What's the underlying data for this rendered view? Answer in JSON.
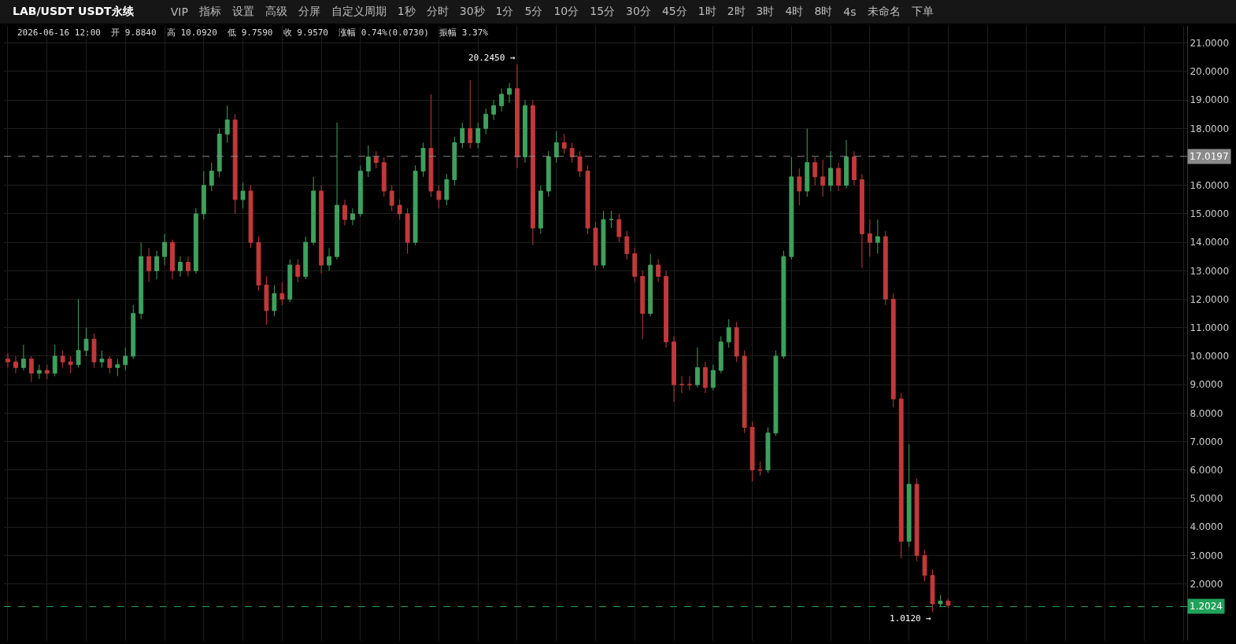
{
  "chart_data": {
    "type": "candlestick",
    "title": "LAB/USDT USDT永续",
    "subtitle": "2026-06-16 12:00  开 9.8840  高 10.0920  低 9.7590  收 9.9570  涨幅 0.74%(0.0730)  振幅 3.37%",
    "annotations": [
      "VIP",
      "指标",
      "设置",
      "高级",
      "分屏",
      "自定义周期",
      "1秒",
      "分时",
      "30秒",
      "1分",
      "5分",
      "10分",
      "15分",
      "30分",
      "45分",
      "1时",
      "2时",
      "3时",
      "4时",
      "8时",
      "4s",
      "未命名",
      "下单",
      "20.2450 →",
      "1.0120 →"
    ],
    "categories": [
      null,
      null,
      null,
      null,
      null,
      null,
      null,
      null,
      null,
      null,
      null,
      null,
      null,
      null,
      null,
      null,
      null,
      null,
      null,
      null,
      null,
      null,
      null,
      null,
      null,
      null,
      null,
      null,
      null,
      null,
      null,
      null,
      null,
      null,
      null,
      null,
      null,
      null,
      null,
      null,
      null,
      null,
      null,
      null,
      null,
      null,
      null,
      null,
      null,
      null,
      null,
      null,
      null,
      null,
      null,
      null,
      null,
      null,
      null,
      null,
      null,
      null,
      null,
      null,
      null,
      null,
      null,
      null,
      null,
      null,
      null,
      null,
      null,
      null,
      null,
      null,
      null,
      null,
      null,
      null,
      null,
      null,
      null,
      null,
      null,
      null,
      null,
      null,
      null,
      null,
      null,
      null,
      null,
      null,
      null,
      null,
      null,
      null,
      null,
      null,
      null,
      null,
      null,
      null,
      null,
      null,
      null,
      null,
      null,
      null,
      null,
      null,
      null,
      null,
      null,
      null,
      null,
      null,
      null,
      null,
      null,
      null,
      null,
      null,
      null,
      null,
      null,
      null,
      null,
      null,
      null,
      null,
      null,
      null,
      null,
      null,
      null,
      null,
      null,
      null,
      null,
      null,
      null,
      null,
      null,
      null,
      null,
      null,
      null,
      null,
      null
    ],
    "ohlc": [
      [
        9.9,
        10.1,
        9.6,
        9.8
      ],
      [
        9.8,
        10.0,
        9.4,
        9.6
      ],
      [
        9.6,
        10.4,
        9.5,
        9.9
      ],
      [
        9.9,
        10.0,
        9.1,
        9.4
      ],
      [
        9.4,
        9.7,
        9.2,
        9.5
      ],
      [
        9.5,
        9.7,
        9.2,
        9.4
      ],
      [
        9.4,
        10.4,
        9.3,
        10.0
      ],
      [
        10.0,
        10.2,
        9.6,
        9.8
      ],
      [
        9.8,
        10.0,
        9.4,
        9.7
      ],
      [
        9.7,
        12.0,
        9.6,
        10.2
      ],
      [
        10.2,
        11.0,
        10.0,
        10.6
      ],
      [
        10.6,
        10.8,
        9.6,
        9.8
      ],
      [
        9.8,
        10.2,
        9.6,
        9.9
      ],
      [
        9.9,
        10.0,
        9.4,
        9.6
      ],
      [
        9.6,
        9.9,
        9.3,
        9.7
      ],
      [
        9.7,
        10.3,
        9.5,
        10.0
      ],
      [
        10.0,
        11.8,
        9.9,
        11.5
      ],
      [
        11.5,
        14.0,
        11.3,
        13.5
      ],
      [
        13.5,
        13.8,
        12.6,
        13.0
      ],
      [
        13.0,
        13.7,
        12.7,
        13.5
      ],
      [
        13.5,
        14.3,
        13.2,
        14.0
      ],
      [
        14.0,
        14.1,
        12.7,
        13.0
      ],
      [
        13.0,
        13.5,
        12.8,
        13.3
      ],
      [
        13.3,
        13.5,
        12.8,
        13.0
      ],
      [
        13.0,
        15.2,
        12.9,
        15.0
      ],
      [
        15.0,
        16.5,
        14.8,
        16.0
      ],
      [
        16.0,
        16.8,
        15.8,
        16.5
      ],
      [
        16.5,
        18.0,
        16.3,
        17.8
      ],
      [
        17.8,
        18.8,
        17.5,
        18.3
      ],
      [
        18.3,
        18.5,
        15.0,
        15.5
      ],
      [
        15.5,
        16.1,
        15.2,
        15.8
      ],
      [
        15.8,
        16.0,
        13.8,
        14.0
      ],
      [
        14.0,
        14.2,
        12.3,
        12.5
      ],
      [
        12.5,
        12.8,
        11.1,
        11.6
      ],
      [
        11.6,
        12.5,
        11.4,
        12.2
      ],
      [
        12.2,
        12.6,
        11.8,
        12.0
      ],
      [
        12.0,
        13.4,
        11.9,
        13.2
      ],
      [
        13.2,
        13.4,
        12.6,
        12.8
      ],
      [
        12.8,
        14.2,
        12.7,
        14.0
      ],
      [
        14.0,
        16.3,
        13.9,
        15.8
      ],
      [
        15.8,
        16.0,
        12.9,
        13.2
      ],
      [
        13.2,
        13.8,
        13.0,
        13.5
      ],
      [
        13.5,
        18.2,
        13.4,
        15.3
      ],
      [
        15.3,
        15.5,
        14.6,
        14.8
      ],
      [
        14.8,
        15.2,
        14.6,
        15.0
      ],
      [
        15.0,
        16.7,
        14.9,
        16.5
      ],
      [
        16.5,
        17.4,
        16.3,
        17.0
      ],
      [
        17.0,
        17.2,
        16.6,
        16.8
      ],
      [
        16.8,
        17.0,
        15.6,
        15.8
      ],
      [
        15.8,
        16.0,
        15.1,
        15.3
      ],
      [
        15.3,
        15.5,
        14.8,
        15.0
      ],
      [
        15.0,
        15.2,
        13.6,
        14.0
      ],
      [
        14.0,
        16.7,
        13.9,
        16.5
      ],
      [
        16.5,
        17.5,
        16.3,
        17.3
      ],
      [
        17.3,
        19.2,
        15.6,
        15.8
      ],
      [
        15.8,
        16.0,
        15.2,
        15.5
      ],
      [
        15.5,
        16.4,
        15.3,
        16.2
      ],
      [
        16.2,
        17.7,
        16.0,
        17.5
      ],
      [
        17.5,
        18.2,
        17.3,
        18.0
      ],
      [
        18.0,
        19.7,
        17.3,
        17.5
      ],
      [
        17.5,
        18.2,
        17.3,
        18.0
      ],
      [
        18.0,
        18.7,
        17.8,
        18.5
      ],
      [
        18.5,
        19.0,
        18.3,
        18.8
      ],
      [
        18.8,
        19.4,
        18.6,
        19.2
      ],
      [
        19.2,
        19.6,
        18.9,
        19.4
      ],
      [
        19.4,
        20.245,
        16.6,
        17.0
      ],
      [
        17.0,
        19.0,
        16.8,
        18.8
      ],
      [
        18.8,
        19.0,
        13.9,
        14.5
      ],
      [
        14.5,
        16.0,
        14.3,
        15.8
      ],
      [
        15.8,
        17.2,
        15.6,
        17.0
      ],
      [
        17.0,
        17.9,
        16.8,
        17.5
      ],
      [
        17.5,
        17.8,
        17.1,
        17.3
      ],
      [
        17.3,
        17.5,
        16.8,
        17.0
      ],
      [
        17.0,
        17.2,
        16.3,
        16.5
      ],
      [
        16.5,
        16.7,
        14.3,
        14.5
      ],
      [
        14.5,
        14.7,
        13.0,
        13.2
      ],
      [
        13.2,
        15.1,
        13.1,
        14.8
      ],
      [
        14.8,
        15.1,
        14.5,
        14.8
      ],
      [
        14.8,
        15.0,
        14.0,
        14.2
      ],
      [
        14.2,
        14.4,
        13.4,
        13.6
      ],
      [
        13.6,
        13.8,
        12.6,
        12.8
      ],
      [
        12.8,
        13.0,
        10.6,
        11.5
      ],
      [
        11.5,
        13.6,
        11.4,
        13.2
      ],
      [
        13.2,
        13.4,
        12.6,
        12.8
      ],
      [
        12.8,
        13.0,
        10.3,
        10.5
      ],
      [
        10.5,
        10.7,
        8.4,
        9.0
      ],
      [
        9.0,
        9.3,
        8.7,
        9.0
      ],
      [
        9.0,
        9.3,
        8.8,
        9.0
      ],
      [
        9.0,
        10.3,
        8.9,
        9.6
      ],
      [
        9.6,
        9.8,
        8.7,
        8.9
      ],
      [
        8.9,
        9.7,
        8.8,
        9.5
      ],
      [
        9.5,
        10.7,
        9.4,
        10.5
      ],
      [
        10.5,
        11.3,
        10.3,
        11.0
      ],
      [
        11.0,
        11.2,
        9.8,
        10.0
      ],
      [
        10.0,
        10.2,
        7.3,
        7.5
      ],
      [
        7.5,
        7.7,
        5.6,
        6.0
      ],
      [
        6.0,
        6.3,
        5.8,
        6.0
      ],
      [
        6.0,
        7.5,
        5.9,
        7.3
      ],
      [
        7.3,
        10.2,
        7.2,
        10.0
      ],
      [
        10.0,
        13.7,
        9.9,
        13.5
      ],
      [
        13.5,
        17.0,
        13.4,
        16.3
      ],
      [
        16.3,
        16.6,
        15.3,
        15.8
      ],
      [
        15.8,
        18.0,
        15.6,
        16.8
      ],
      [
        16.8,
        17.0,
        16.0,
        16.3
      ],
      [
        16.3,
        16.9,
        15.6,
        16.0
      ],
      [
        16.0,
        17.2,
        15.8,
        16.6
      ],
      [
        16.6,
        16.8,
        15.8,
        16.0
      ],
      [
        16.0,
        17.6,
        15.9,
        17.0
      ],
      [
        17.0,
        17.2,
        16.0,
        16.2
      ],
      [
        16.2,
        16.4,
        13.1,
        14.3
      ],
      [
        14.3,
        14.8,
        13.5,
        14.0
      ],
      [
        14.0,
        14.8,
        13.6,
        14.2
      ],
      [
        14.2,
        14.4,
        11.8,
        12.0
      ],
      [
        12.0,
        12.2,
        8.2,
        8.5
      ],
      [
        8.5,
        8.7,
        2.9,
        3.5
      ],
      [
        3.5,
        6.9,
        3.3,
        5.5
      ],
      [
        5.5,
        5.7,
        2.8,
        3.0
      ],
      [
        3.0,
        3.2,
        2.1,
        2.3
      ],
      [
        2.3,
        2.5,
        1.012,
        1.3
      ],
      [
        1.3,
        1.6,
        1.2,
        1.4
      ],
      [
        1.4,
        1.5,
        1.15,
        1.25
      ],
      null,
      null,
      null,
      null,
      null,
      null,
      null,
      null,
      null,
      null,
      null,
      null,
      null,
      null,
      null,
      null,
      null,
      null,
      null,
      null,
      null,
      null,
      null,
      null,
      null,
      null,
      null,
      null,
      null,
      null
    ],
    "ylim": [
      0,
      21.6
    ],
    "yticks": [
      {
        "value": 2,
        "label": "2.0000"
      },
      {
        "value": 3,
        "label": "3.0000"
      },
      {
        "value": 4,
        "label": "4.0000"
      },
      {
        "value": 5,
        "label": "5.0000"
      },
      {
        "value": 6,
        "label": "6.0000"
      },
      {
        "value": 7,
        "label": "7.0000"
      },
      {
        "value": 8,
        "label": "8.0000"
      },
      {
        "value": 9,
        "label": "9.0000"
      },
      {
        "value": 10,
        "label": "10.0000"
      },
      {
        "value": 11,
        "label": "11.0000"
      },
      {
        "value": 12,
        "label": "12.0000"
      },
      {
        "value": 13,
        "label": "13.0000"
      },
      {
        "value": 14,
        "label": "14.0000"
      },
      {
        "value": 15,
        "label": "15.0000"
      },
      {
        "value": 16,
        "label": "16.0000"
      },
      {
        "value": 18,
        "label": "18.0000"
      },
      {
        "value": 19,
        "label": "19.0000"
      },
      {
        "value": 20,
        "label": "20.0000"
      },
      {
        "value": 21,
        "label": "21.0000"
      }
    ],
    "ref_lines": [
      {
        "axis": "y",
        "value": 17.0197,
        "label": "17.0197",
        "color": "#8a8a8a",
        "line_style": "dashed"
      },
      {
        "axis": "y",
        "value": 1.2024,
        "label": "1.2024",
        "color": "#1fa35a",
        "line_style": "dashed"
      }
    ],
    "grid": true,
    "tick_labels": "y"
  }
}
